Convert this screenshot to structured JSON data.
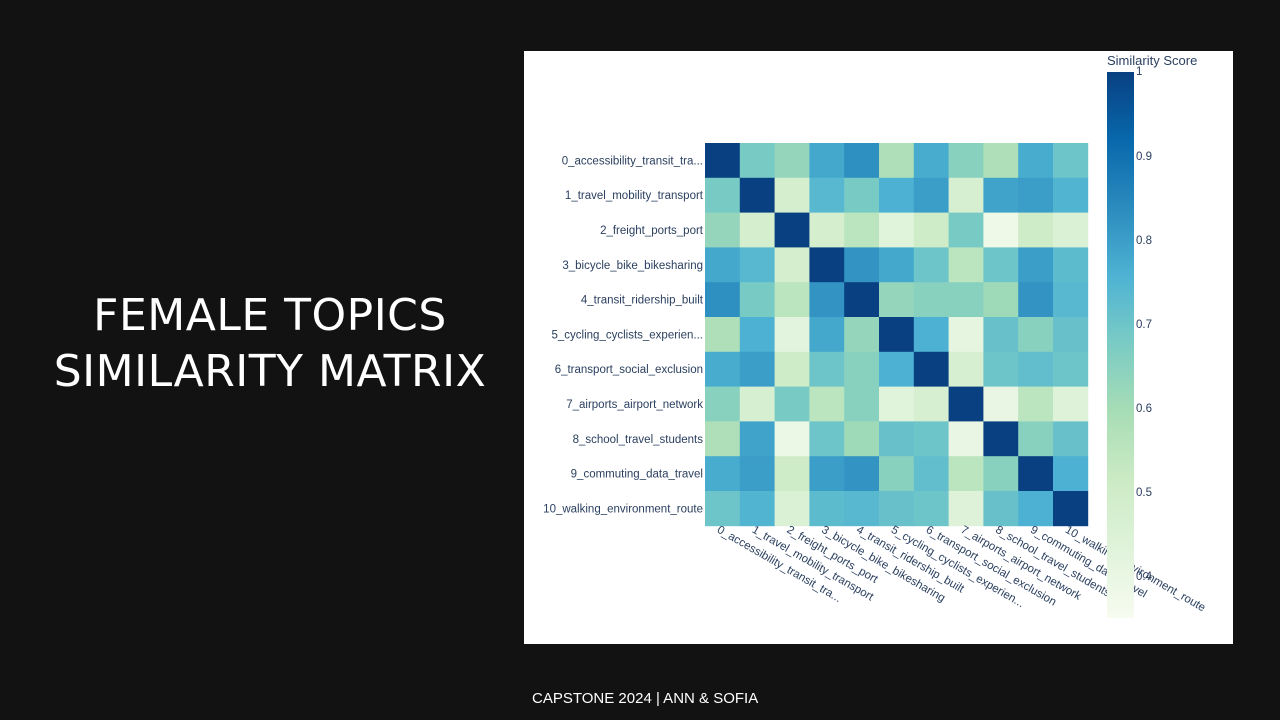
{
  "slide": {
    "title_line1": "FEMALE TOPICS",
    "title_line2": "SIMILARITY MATRIX",
    "footer": "CAPSTONE 2024 | ANN & SOFIA"
  },
  "colors": {
    "background": "#121212",
    "panel": "#ffffff",
    "colorscale": [
      "#f7fcf0",
      "#e0f3db",
      "#ccebc5",
      "#a8ddb5",
      "#7bccc4",
      "#4eb3d3",
      "#2b8cbe",
      "#0868ac",
      "#084081"
    ]
  },
  "chart_data": {
    "type": "heatmap",
    "title": "",
    "colorbar_title": "Similarity Score",
    "zmin": 0.35,
    "zmax": 1,
    "colorbar_ticks": [
      "1",
      "0.9",
      "0.8",
      "0.7",
      "0.6",
      "0.5",
      "0.4"
    ],
    "colorbar_tick_values": [
      1,
      0.9,
      0.8,
      0.7,
      0.6,
      0.5,
      0.4
    ],
    "y_labels": [
      "0_accessibility_transit_tra...",
      "1_travel_mobility_transport",
      "2_freight_ports_port",
      "3_bicycle_bike_bikesharing",
      "4_transit_ridership_built",
      "5_cycling_cyclists_experien...",
      "6_transport_social_exclusion",
      "7_airports_airport_network",
      "8_school_travel_students",
      "9_commuting_data_travel",
      "10_walking_environment_route"
    ],
    "x_labels": [
      "0_accessibility_transit_tra...",
      "1_travel_mobility_transport",
      "2_freight_ports_port",
      "3_bicycle_bike_bikesharing",
      "4_transit_ridership_built",
      "5_cycling_cyclists_experien...",
      "6_transport_social_exclusion",
      "7_airports_airport_network",
      "8_school_travel_students",
      "9_commuting_data_travel",
      "10_walking_environment_route"
    ],
    "z": [
      [
        1.0,
        0.68,
        0.63,
        0.78,
        0.83,
        0.58,
        0.77,
        0.65,
        0.58,
        0.77,
        0.7
      ],
      [
        0.68,
        1.0,
        0.48,
        0.74,
        0.68,
        0.76,
        0.8,
        0.47,
        0.79,
        0.8,
        0.75
      ],
      [
        0.63,
        0.48,
        1.0,
        0.48,
        0.55,
        0.43,
        0.5,
        0.68,
        0.38,
        0.5,
        0.45
      ],
      [
        0.78,
        0.74,
        0.48,
        1.0,
        0.82,
        0.78,
        0.7,
        0.55,
        0.7,
        0.8,
        0.73
      ],
      [
        0.83,
        0.68,
        0.55,
        0.82,
        1.0,
        0.63,
        0.65,
        0.65,
        0.61,
        0.82,
        0.74
      ],
      [
        0.58,
        0.76,
        0.42,
        0.78,
        0.63,
        1.0,
        0.76,
        0.41,
        0.71,
        0.65,
        0.71
      ],
      [
        0.77,
        0.8,
        0.5,
        0.7,
        0.65,
        0.76,
        1.0,
        0.47,
        0.7,
        0.72,
        0.7
      ],
      [
        0.65,
        0.47,
        0.68,
        0.55,
        0.65,
        0.43,
        0.47,
        1.0,
        0.4,
        0.55,
        0.44
      ],
      [
        0.58,
        0.79,
        0.39,
        0.7,
        0.61,
        0.71,
        0.7,
        0.4,
        1.0,
        0.65,
        0.71
      ],
      [
        0.77,
        0.8,
        0.5,
        0.8,
        0.82,
        0.65,
        0.72,
        0.55,
        0.65,
        1.0,
        0.76
      ],
      [
        0.7,
        0.75,
        0.45,
        0.73,
        0.74,
        0.71,
        0.7,
        0.44,
        0.71,
        0.76,
        1.0
      ]
    ],
    "grid": false,
    "colorbar_position": "right"
  }
}
